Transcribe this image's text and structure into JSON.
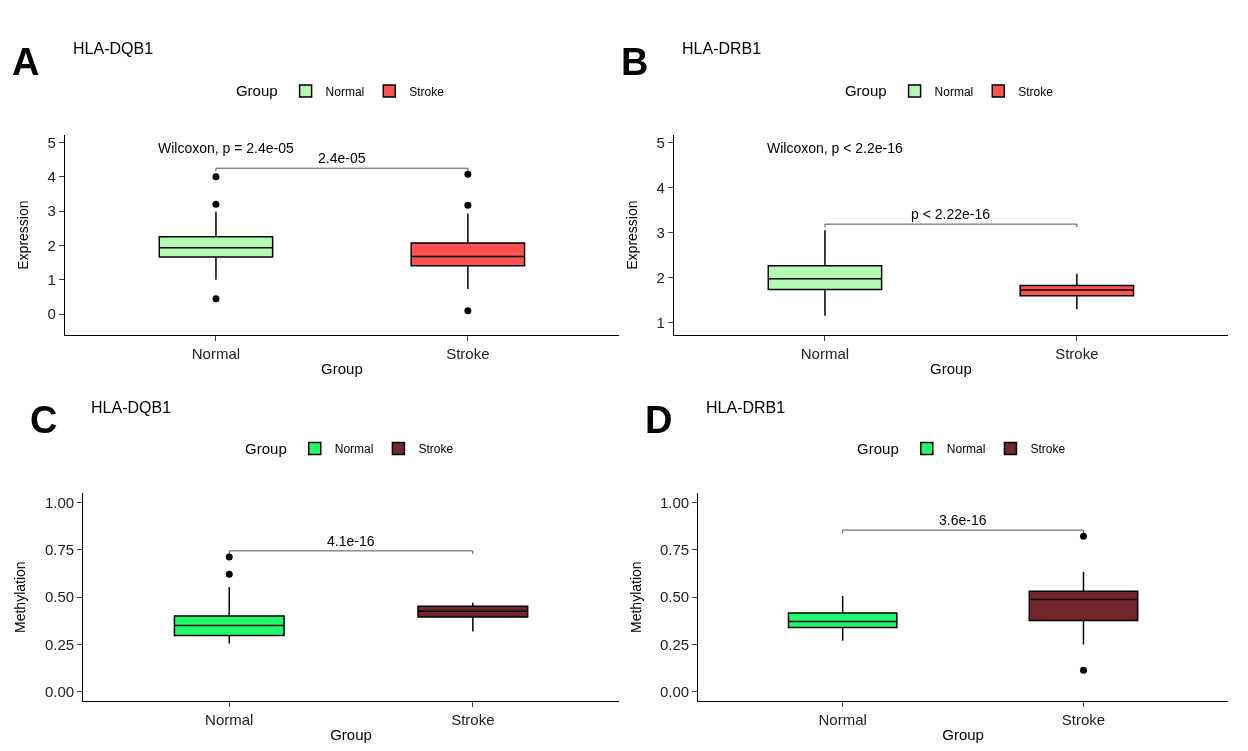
{
  "chart_data": [
    {
      "type": "box",
      "title": "HLA-DQB1",
      "xlabel": "Group",
      "ylabel": "Expression",
      "legend_title": "Group",
      "legend": "top",
      "categories": [
        "Normal",
        "Stroke"
      ],
      "ylim": [
        -0.62,
        5.22
      ],
      "yticks": [
        0,
        1,
        2,
        3,
        4,
        5
      ],
      "annotations": [
        "A",
        "Wilcoxon, p = 2.4e-05",
        "2.4e-05"
      ],
      "series": [
        {
          "name": "Normal",
          "color": "#b3fbb3",
          "boxes": [
            {
              "low": 1.0,
              "q1": 1.66,
              "median": 1.93,
              "q3": 2.25,
              "high": 2.98,
              "outliers": [
                4.0,
                3.2,
                0.45
              ]
            },
            null
          ]
        },
        {
          "name": "Stroke",
          "color": "#fe5152",
          "boxes": [
            null,
            {
              "low": 0.73,
              "q1": 1.41,
              "median": 1.68,
              "q3": 2.07,
              "high": 2.93,
              "outliers": [
                4.07,
                3.17,
                0.1
              ]
            }
          ]
        }
      ]
    },
    {
      "type": "box",
      "title": "HLA-DRB1",
      "xlabel": "Group",
      "ylabel": "Expression",
      "legend_title": "Group",
      "legend": "top",
      "categories": [
        "Normal",
        "Stroke"
      ],
      "ylim": [
        0.71,
        5.17
      ],
      "yticks": [
        1,
        2,
        3,
        4,
        5
      ],
      "annotations": [
        "B",
        "Wilcoxon, p < 2.2e-16",
        "p < 2.22e-16"
      ],
      "series": [
        {
          "name": "Normal",
          "color": "#b3fbb3",
          "boxes": [
            {
              "low": 1.15,
              "q1": 1.73,
              "median": 1.97,
              "q3": 2.26,
              "high": 3.05
            },
            null
          ]
        },
        {
          "name": "Stroke",
          "color": "#fe5152",
          "boxes": [
            null,
            {
              "low": 1.29,
              "q1": 1.59,
              "median": 1.72,
              "q3": 1.82,
              "high": 2.08
            }
          ]
        }
      ]
    },
    {
      "type": "box",
      "title": "HLA-DQB1",
      "xlabel": "Group",
      "ylabel": "Methylation",
      "legend_title": "Group",
      "legend": "top",
      "categories": [
        "Normal",
        "Stroke"
      ],
      "ylim": [
        -0.05,
        1.05
      ],
      "yticks": [
        {
          "value": 0,
          "label": "0.00"
        },
        {
          "value": 0.25,
          "label": "0.25"
        },
        {
          "value": 0.5,
          "label": "0.50"
        },
        {
          "value": 0.75,
          "label": "0.75"
        },
        {
          "value": 1,
          "label": "1.00"
        }
      ],
      "annotations": [
        "C",
        "4.1e-16"
      ],
      "series": [
        {
          "name": "Normal",
          "color": "#20fb6c",
          "boxes": [
            {
              "low": 0.255,
              "q1": 0.297,
              "median": 0.35,
              "q3": 0.4,
              "high": 0.552,
              "outliers": [
                0.712,
                0.621
              ]
            },
            null
          ]
        },
        {
          "name": "Stroke",
          "color": "#74272a",
          "boxes": [
            null,
            {
              "low": 0.319,
              "q1": 0.395,
              "median": 0.426,
              "q3": 0.452,
              "high": 0.47
            }
          ]
        }
      ]
    },
    {
      "type": "box",
      "title": "HLA-DRB1",
      "xlabel": "Group",
      "ylabel": "Methylation",
      "legend_title": "Group",
      "legend": "top",
      "categories": [
        "Normal",
        "Stroke"
      ],
      "ylim": [
        -0.05,
        1.05
      ],
      "yticks": [
        {
          "value": 0,
          "label": "0.00"
        },
        {
          "value": 0.25,
          "label": "0.25"
        },
        {
          "value": 0.5,
          "label": "0.50"
        },
        {
          "value": 0.75,
          "label": "0.75"
        },
        {
          "value": 1,
          "label": "1.00"
        }
      ],
      "annotations": [
        "D",
        "3.6e-16"
      ],
      "series": [
        {
          "name": "Normal",
          "color": "#20fb6c",
          "boxes": [
            {
              "low": 0.269,
              "q1": 0.339,
              "median": 0.372,
              "q3": 0.416,
              "high": 0.506
            },
            null
          ]
        },
        {
          "name": "Stroke",
          "color": "#74272a",
          "boxes": [
            null,
            {
              "low": 0.25,
              "q1": 0.377,
              "median": 0.488,
              "q3": 0.532,
              "high": 0.635,
              "outliers": [
                0.822,
                0.113
              ]
            }
          ]
        }
      ]
    }
  ]
}
